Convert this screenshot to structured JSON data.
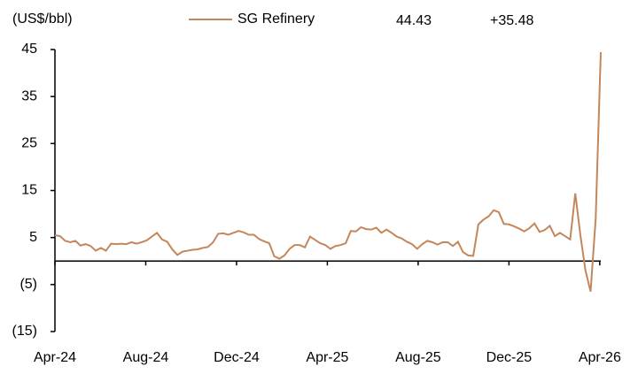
{
  "chart_data": {
    "type": "line",
    "y_label": "(US$/bbl)",
    "annotations": [
      "44.43",
      "+35.48"
    ],
    "x": [
      0,
      1,
      2,
      3,
      4,
      5,
      6,
      7,
      8,
      9,
      10,
      11,
      12,
      13,
      14,
      15,
      16,
      17,
      18,
      19,
      20,
      21,
      22,
      23,
      24,
      25,
      26,
      27,
      28,
      29,
      30,
      31,
      32,
      33,
      34,
      35,
      36,
      37,
      38,
      39,
      40,
      41,
      42,
      43,
      44,
      45,
      46,
      47,
      48,
      49,
      50,
      51,
      52,
      53,
      54,
      55,
      56,
      57,
      58,
      59,
      60,
      61,
      62,
      63,
      64,
      65,
      66,
      67,
      68,
      69,
      70,
      71,
      72,
      73,
      74,
      75,
      76,
      77,
      78,
      79,
      80,
      81,
      82,
      83,
      84,
      85,
      86,
      87,
      88,
      89,
      90,
      91,
      92,
      93,
      94,
      95,
      96,
      97,
      98,
      99,
      100,
      101,
      102,
      103,
      104,
      105,
      106,
      107
    ],
    "series": [
      {
        "name": "SG Refinery",
        "color": "#c4875c",
        "values": [
          5.5,
          5.3,
          4.3,
          4,
          4.3,
          3.3,
          3.6,
          3.2,
          2.2,
          2.8,
          2.2,
          3.7,
          3.6,
          3.7,
          3.6,
          4,
          3.7,
          4,
          4.4,
          5.2,
          6,
          4.6,
          4.1,
          2.5,
          1.3,
          2,
          2.2,
          2.4,
          2.5,
          2.8,
          3,
          4,
          5.8,
          5.9,
          5.6,
          6,
          6.4,
          6.1,
          5.6,
          5.6,
          4.7,
          4.2,
          3.8,
          1,
          0.5,
          1.2,
          2.6,
          3.4,
          3.4,
          2.9,
          5.2,
          4.5,
          3.8,
          3.4,
          2.6,
          3.2,
          3.4,
          3.8,
          6.4,
          6.3,
          7.2,
          6.8,
          6.7,
          7.1,
          6,
          6.7,
          6,
          5.2,
          4.8,
          4.1,
          3.6,
          2.6,
          3.6,
          4.3,
          4,
          3.5,
          4,
          4,
          3.2,
          4.1,
          1.9,
          1.2,
          1.1,
          7.8,
          8.8,
          9.5,
          10.8,
          10.4,
          7.9,
          7.8,
          7.4,
          6.9,
          6.3,
          7,
          8,
          6.2,
          6.6,
          7.5,
          5.3,
          6,
          5.3,
          4.6,
          14.4,
          5.5,
          -2,
          -6.5,
          9,
          44.43
        ]
      }
    ],
    "xlim": [
      0,
      107
    ],
    "xticks": [
      {
        "value": 0,
        "label": "Apr-24"
      },
      {
        "value": 17.8,
        "label": "Aug-24"
      },
      {
        "value": 35.6,
        "label": "Dec-24"
      },
      {
        "value": 53.4,
        "label": "Apr-25"
      },
      {
        "value": 71.2,
        "label": "Aug-25"
      },
      {
        "value": 89,
        "label": "Dec-25"
      },
      {
        "value": 106.8,
        "label": "Apr-26"
      }
    ],
    "ylim": [
      -15,
      45
    ],
    "yticks": [
      {
        "value": -15,
        "label": "(15)"
      },
      {
        "value": -5,
        "label": "(5)"
      },
      5,
      15,
      25,
      35,
      45
    ],
    "grid": false
  }
}
